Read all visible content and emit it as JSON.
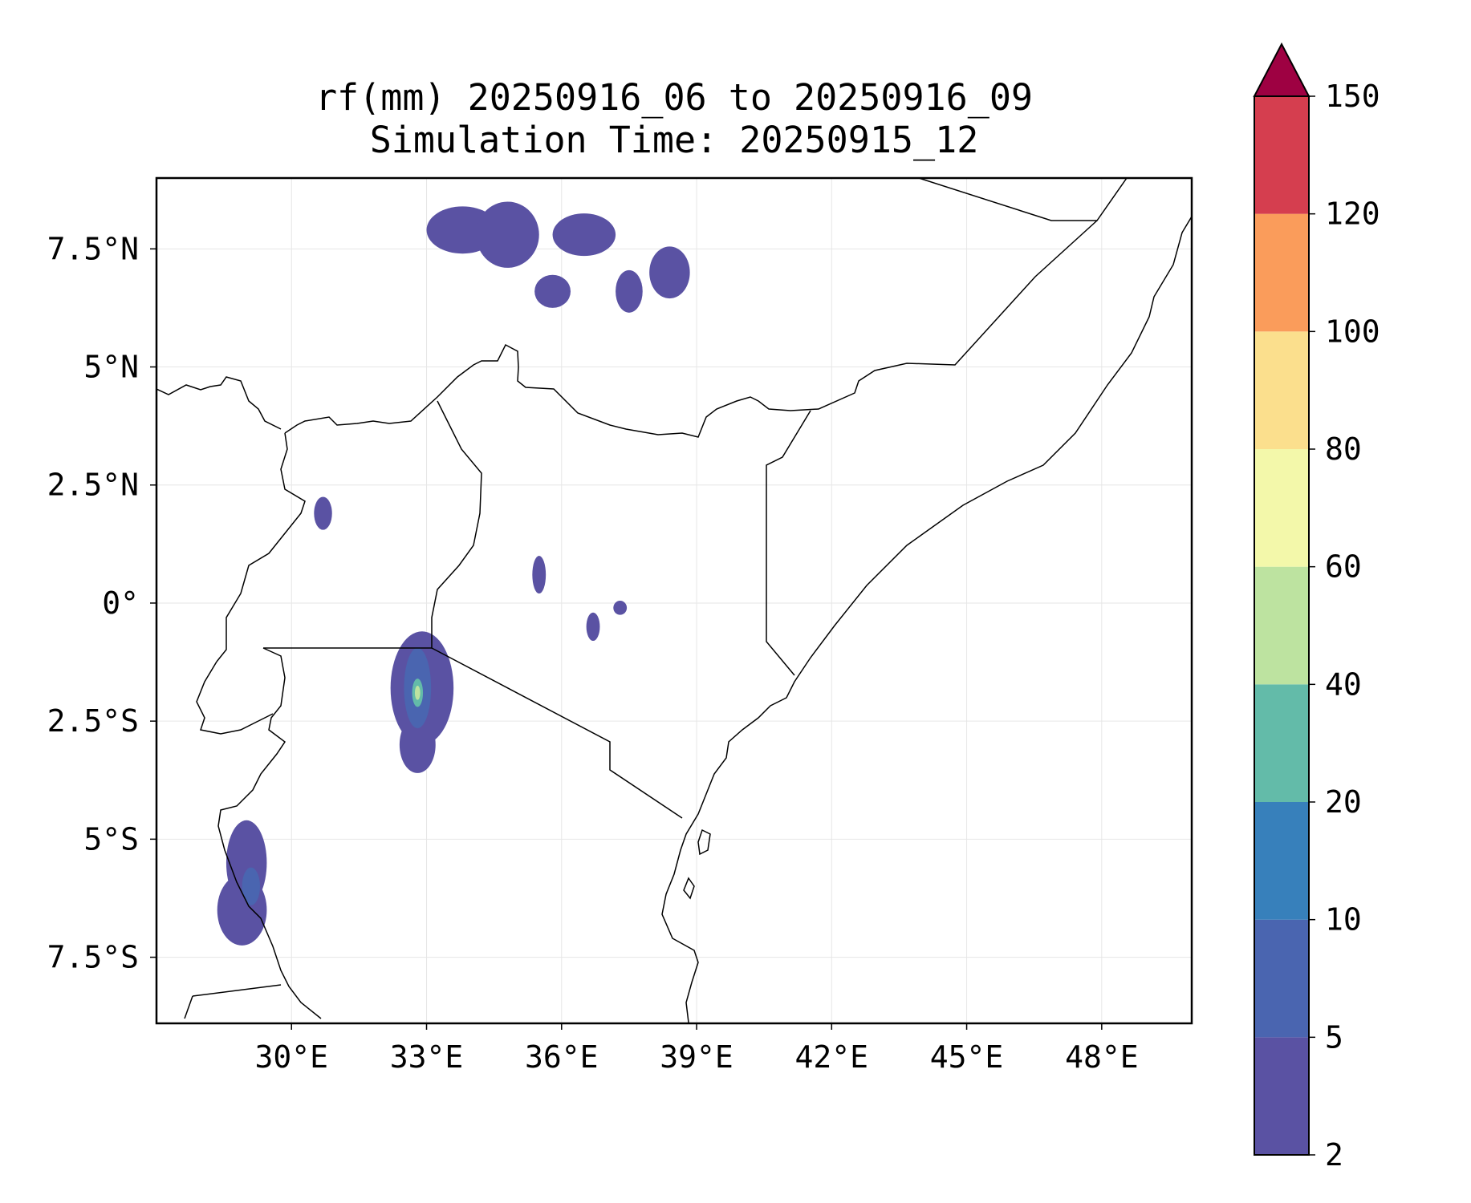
{
  "title": {
    "line1": "rf(mm) 20250916_06 to 20250916_09",
    "line2": "Simulation Time: 20250915_12"
  },
  "map": {
    "lon_range": [
      27.0,
      50.0
    ],
    "lat_range": [
      -8.9,
      9.0
    ],
    "lon_ticks": [
      {
        "value": 30,
        "label": "30°E"
      },
      {
        "value": 33,
        "label": "33°E"
      },
      {
        "value": 36,
        "label": "36°E"
      },
      {
        "value": 39,
        "label": "39°E"
      },
      {
        "value": 42,
        "label": "42°E"
      },
      {
        "value": 45,
        "label": "45°E"
      },
      {
        "value": 48,
        "label": "48°E"
      }
    ],
    "lat_ticks": [
      {
        "value": 7.5,
        "label": "7.5°N"
      },
      {
        "value": 5,
        "label": "5°N"
      },
      {
        "value": 2.5,
        "label": "2.5°N"
      },
      {
        "value": 0,
        "label": "0°"
      },
      {
        "value": -2.5,
        "label": "2.5°S"
      },
      {
        "value": -5,
        "label": "5°S"
      },
      {
        "value": -7.5,
        "label": "7.5°S"
      }
    ],
    "gridlines": true
  },
  "colorbar": {
    "levels": [
      {
        "value": 2,
        "label": "2"
      },
      {
        "value": 5,
        "label": "5"
      },
      {
        "value": 10,
        "label": "10"
      },
      {
        "value": 20,
        "label": "20"
      },
      {
        "value": 40,
        "label": "40"
      },
      {
        "value": 60,
        "label": "60"
      },
      {
        "value": 80,
        "label": "80"
      },
      {
        "value": 100,
        "label": "100"
      },
      {
        "value": 120,
        "label": "120"
      },
      {
        "value": 150,
        "label": "150"
      }
    ],
    "colors": [
      "#5a52a3",
      "#4a65b0",
      "#3780bb",
      "#63bba9",
      "#bde3a0",
      "#f3f8aa",
      "#fbdf8d",
      "#fa9c5b",
      "#d53e4f"
    ],
    "extend_color": "#9e0142"
  },
  "rain_areas": [
    {
      "lon": 33.8,
      "lat": 7.9,
      "rx": 0.8,
      "ry": 0.5,
      "level": 0
    },
    {
      "lon": 34.8,
      "lat": 7.8,
      "rx": 0.7,
      "ry": 0.7,
      "level": 0
    },
    {
      "lon": 36.5,
      "lat": 7.8,
      "rx": 0.7,
      "ry": 0.45,
      "level": 0
    },
    {
      "lon": 35.8,
      "lat": 6.6,
      "rx": 0.4,
      "ry": 0.35,
      "level": 0
    },
    {
      "lon": 37.5,
      "lat": 6.6,
      "rx": 0.3,
      "ry": 0.45,
      "level": 0
    },
    {
      "lon": 38.4,
      "lat": 7.0,
      "rx": 0.45,
      "ry": 0.55,
      "level": 0
    },
    {
      "lon": 30.7,
      "lat": 1.9,
      "rx": 0.2,
      "ry": 0.35,
      "level": 0
    },
    {
      "lon": 35.5,
      "lat": 0.6,
      "rx": 0.15,
      "ry": 0.4,
      "level": 0
    },
    {
      "lon": 36.7,
      "lat": -0.5,
      "rx": 0.15,
      "ry": 0.3,
      "level": 0
    },
    {
      "lon": 37.3,
      "lat": -0.1,
      "rx": 0.15,
      "ry": 0.15,
      "level": 0
    },
    {
      "lon": 32.9,
      "lat": -1.8,
      "rx": 0.7,
      "ry": 1.2,
      "level": 0
    },
    {
      "lon": 32.8,
      "lat": -3.0,
      "rx": 0.4,
      "ry": 0.6,
      "level": 0
    },
    {
      "lon": 32.8,
      "lat": -1.8,
      "rx": 0.3,
      "ry": 0.85,
      "level": 1
    },
    {
      "lon": 32.8,
      "lat": -1.9,
      "rx": 0.12,
      "ry": 0.3,
      "level": 3
    },
    {
      "lon": 32.8,
      "lat": -1.9,
      "rx": 0.06,
      "ry": 0.15,
      "level": 4
    },
    {
      "lon": 29.0,
      "lat": -5.5,
      "rx": 0.45,
      "ry": 0.9,
      "level": 0
    },
    {
      "lon": 28.9,
      "lat": -6.5,
      "rx": 0.55,
      "ry": 0.75,
      "level": 0
    },
    {
      "lon": 29.1,
      "lat": -6.0,
      "rx": 0.2,
      "ry": 0.4,
      "level": 1
    }
  ]
}
